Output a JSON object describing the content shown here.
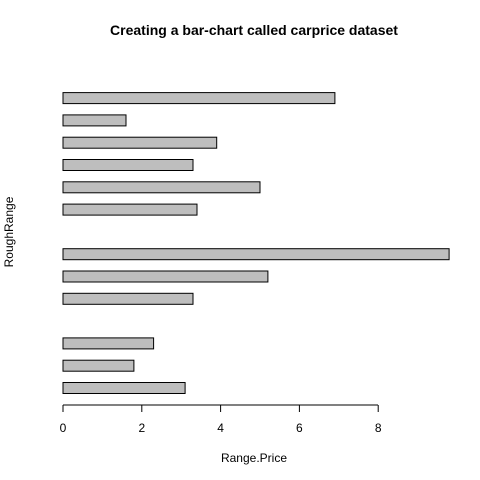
{
  "chart_data": {
    "type": "bar",
    "orientation": "horizontal",
    "title": "Creating a bar-chart called carprice dataset",
    "xlabel": "Range.Price",
    "ylabel": "RoughRange",
    "xlim": [
      0,
      9.8
    ],
    "x_ticks": [
      "0",
      "2",
      "4",
      "6",
      "8"
    ],
    "grid": false,
    "legend": "none",
    "bar_fill": "#bebebe",
    "bar_edge": "#000000",
    "values": [
      3.1,
      1.8,
      2.3,
      0,
      3.3,
      5.2,
      9.8,
      0,
      3.4,
      5.0,
      3.3,
      3.9,
      1.6,
      6.9,
      0
    ]
  }
}
